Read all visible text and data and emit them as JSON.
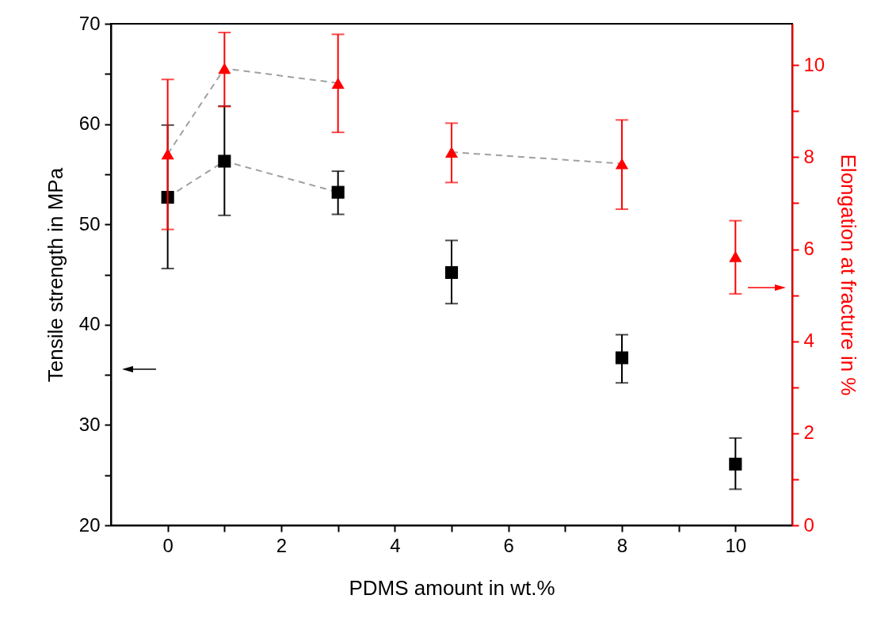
{
  "chart_data": {
    "type": "scatter",
    "xlabel": "PDMS amount in wt.%",
    "ylabel": "Tensile strength in MPa",
    "y2label": "Elongation at fracture in %",
    "x": [
      0,
      1,
      3,
      5,
      8,
      10
    ],
    "xlim": [
      -1,
      11
    ],
    "xticks": [
      0,
      {
        "value": 1,
        "label": null
      },
      2,
      {
        "value": 3,
        "label": null
      },
      4,
      {
        "value": 5,
        "label": null
      },
      6,
      {
        "value": 7,
        "label": null
      },
      8,
      {
        "value": 9,
        "label": null
      },
      10
    ],
    "ylim": [
      20,
      70
    ],
    "yticks": [
      20,
      {
        "value": 25,
        "label": null
      },
      30,
      {
        "value": 35,
        "label": null
      },
      40,
      {
        "value": 45,
        "label": null
      },
      50,
      {
        "value": 55,
        "label": null
      },
      60,
      {
        "value": 65,
        "label": null
      },
      70
    ],
    "y2lim": [
      0,
      10.9
    ],
    "y2ticks": [
      0,
      {
        "value": 1,
        "label": null
      },
      2,
      {
        "value": 3,
        "label": null
      },
      4,
      {
        "value": 5,
        "label": null
      },
      6,
      {
        "value": 7,
        "label": null
      },
      8,
      {
        "value": 9,
        "label": null
      },
      10
    ],
    "series": [
      {
        "type": "line",
        "color": "#a0a0a0",
        "line_style": "dashed",
        "marker": "none",
        "x": [
          0,
          1,
          3
        ],
        "values": [
          52.7,
          56.3,
          53.2
        ]
      },
      {
        "type": "line",
        "color": "#a0a0a0",
        "line_style": "dashed",
        "marker": "none",
        "axis": "y2",
        "x": [
          0,
          1,
          3
        ],
        "values": [
          8.07,
          9.93,
          9.61
        ]
      },
      {
        "type": "line",
        "color": "#a0a0a0",
        "line_style": "dashed",
        "marker": "none",
        "axis": "y2",
        "x": [
          5,
          8
        ],
        "values": [
          8.11,
          7.86
        ]
      },
      {
        "color": "#000000",
        "marker": "square",
        "values": [
          52.7,
          56.3,
          53.2,
          45.2,
          36.7,
          26.1
        ],
        "errors": [
          [
            45.6,
            59.9
          ],
          [
            50.9,
            61.8
          ],
          [
            51.0,
            55.3
          ],
          [
            42.1,
            48.4
          ],
          [
            34.2,
            39.0
          ],
          [
            23.6,
            28.7
          ]
        ]
      },
      {
        "color": "#ff0000",
        "marker": "triangle",
        "axis": "y2",
        "values": [
          8.07,
          9.93,
          9.61,
          8.11,
          7.86,
          5.84
        ],
        "errors": [
          [
            6.43,
            9.69
          ],
          [
            9.1,
            10.71
          ],
          [
            8.54,
            10.67
          ],
          [
            7.45,
            8.74
          ],
          [
            6.87,
            8.81
          ],
          [
            5.03,
            6.62
          ]
        ]
      }
    ],
    "grid": false
  }
}
